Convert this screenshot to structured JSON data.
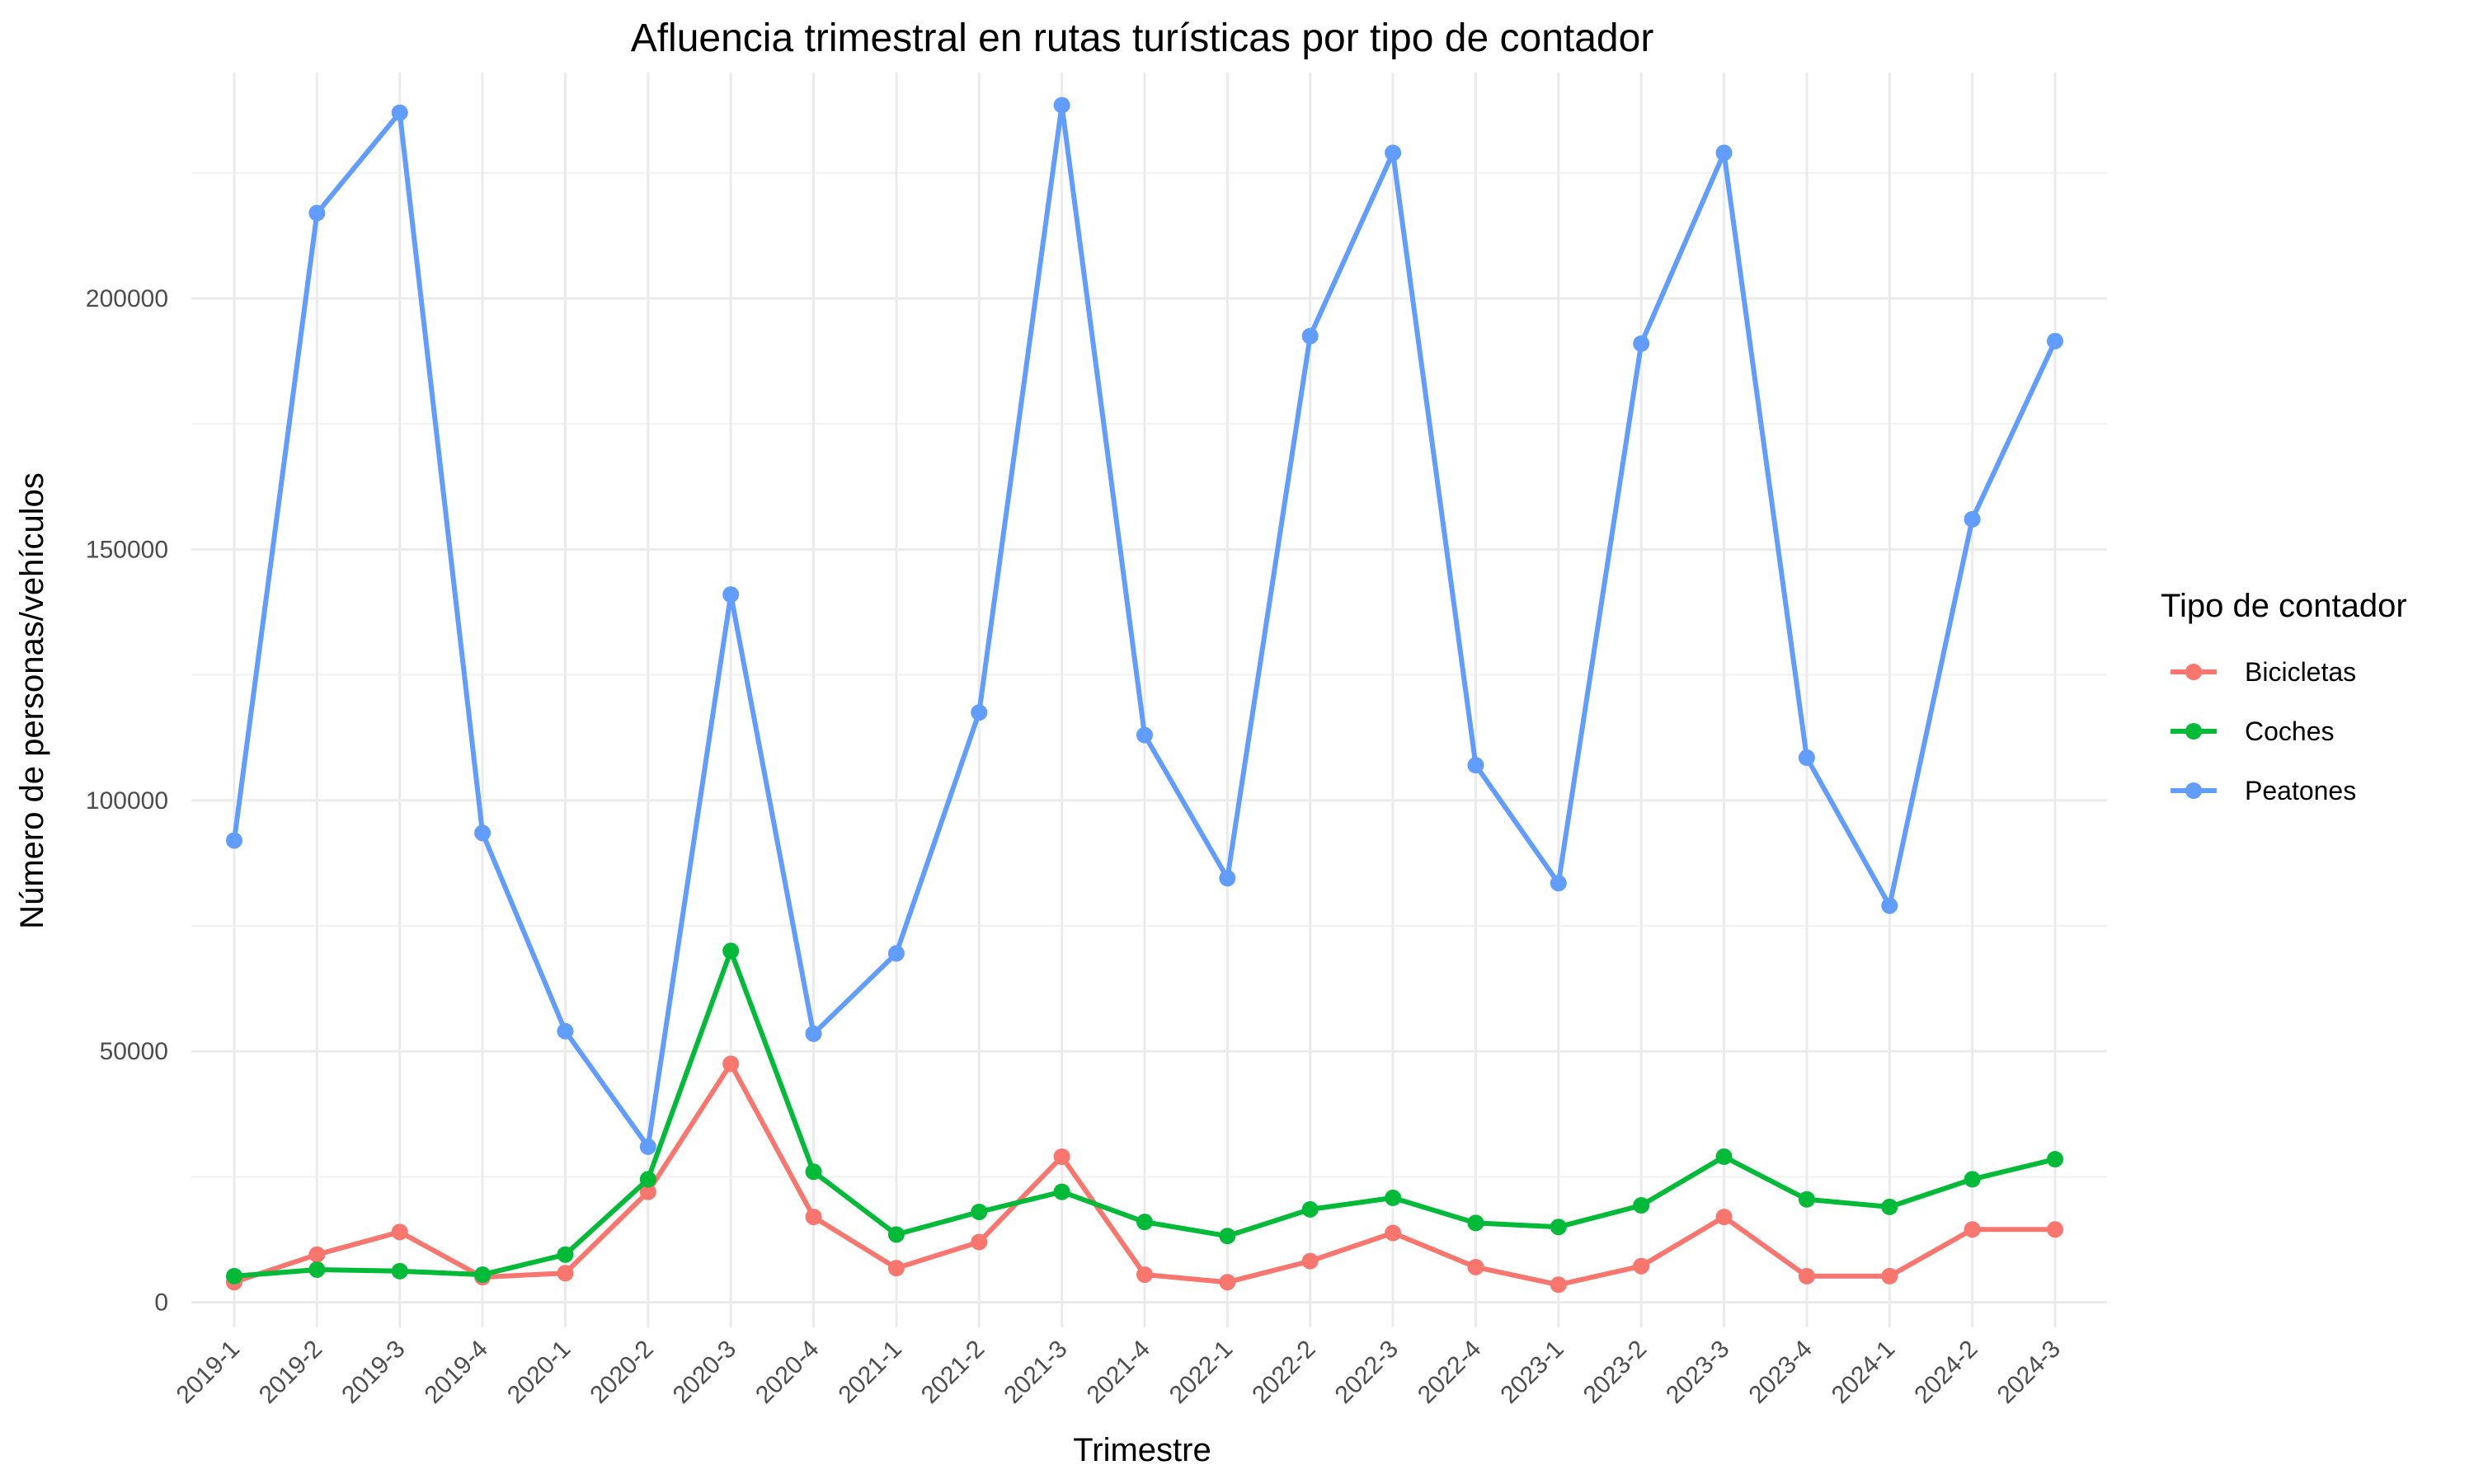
{
  "chart_data": {
    "type": "line",
    "title": "Afluencia trimestral en rutas turísticas por tipo de contador",
    "xlabel": "Trimestre",
    "ylabel": "Número de personas/vehículos",
    "categories": [
      "2019-1",
      "2019-2",
      "2019-3",
      "2019-4",
      "2020-1",
      "2020-2",
      "2020-3",
      "2020-4",
      "2021-1",
      "2021-2",
      "2021-3",
      "2021-4",
      "2022-1",
      "2022-2",
      "2022-3",
      "2022-4",
      "2023-1",
      "2023-2",
      "2023-3",
      "2023-4",
      "2024-1",
      "2024-2",
      "2024-3"
    ],
    "ylim": [
      -5000,
      245000
    ],
    "yticks": [
      0,
      50000,
      100000,
      150000,
      200000
    ],
    "ytick_labels": [
      "0",
      "50000",
      "100000",
      "150000",
      "200000"
    ],
    "grid": true,
    "legend": {
      "title": "Tipo de contador",
      "position": "right"
    },
    "series": [
      {
        "name": "Bicicletas",
        "color": "#F8766D",
        "values": [
          4000,
          9500,
          14000,
          5000,
          5800,
          22000,
          47500,
          17000,
          6800,
          12000,
          29000,
          5500,
          4000,
          8200,
          13800,
          7000,
          3500,
          7200,
          17000,
          5200,
          5200,
          14500,
          14500
        ]
      },
      {
        "name": "Coches",
        "color": "#00BA38",
        "values": [
          5200,
          6500,
          6200,
          5500,
          9500,
          24500,
          70000,
          26000,
          13500,
          18000,
          22000,
          16000,
          13200,
          18500,
          20800,
          15800,
          15000,
          19300,
          29000,
          20500,
          19000,
          24500,
          28500
        ]
      },
      {
        "name": "Peatones",
        "color": "#619CFF",
        "values": [
          92000,
          217000,
          237000,
          93500,
          54000,
          31000,
          141000,
          53500,
          69500,
          117500,
          238500,
          113000,
          84500,
          192500,
          229000,
          107000,
          83500,
          191000,
          229000,
          108500,
          79000,
          156000,
          191500
        ]
      }
    ]
  }
}
